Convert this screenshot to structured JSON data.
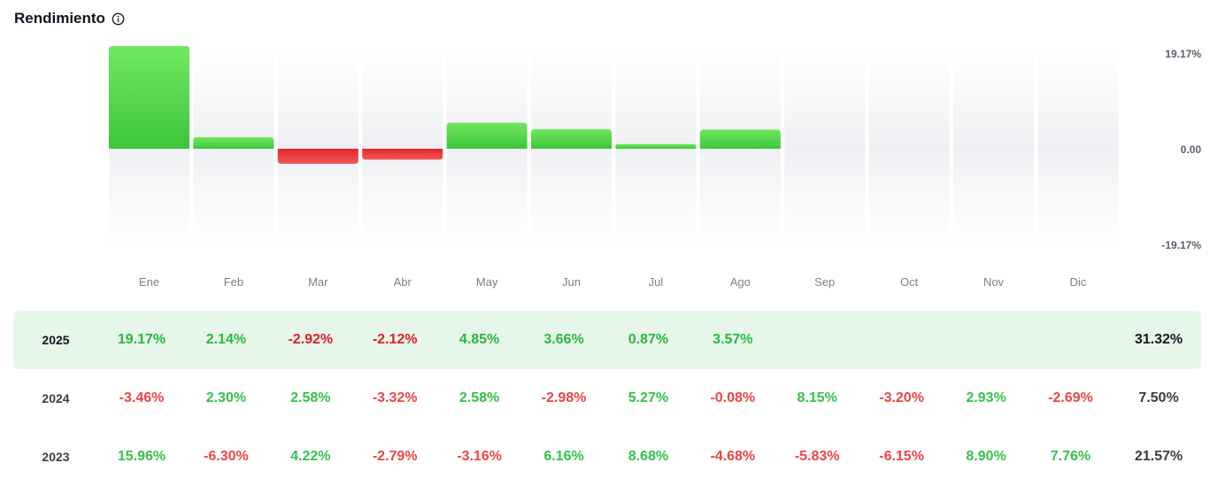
{
  "header": {
    "title": "Rendimiento",
    "info_icon": "info-circle-icon"
  },
  "colors": {
    "positive": "#3cc63a",
    "negative": "#e2272b",
    "current_row_bg": "#e6f7e9"
  },
  "chart_data": {
    "type": "bar",
    "categories": [
      "Ene",
      "Feb",
      "Mar",
      "Abr",
      "May",
      "Jun",
      "Jul",
      "Ago",
      "Sep",
      "Oct",
      "Nov",
      "Dic"
    ],
    "values": [
      19.17,
      2.14,
      -2.92,
      -2.12,
      4.85,
      3.66,
      0.87,
      3.57,
      null,
      null,
      null,
      null
    ],
    "ylim": [
      -19.17,
      19.17
    ],
    "y_ticks": [
      "19.17%",
      "0.00",
      "-19.17%"
    ],
    "y_axis_position": "right",
    "grid": false
  },
  "table": {
    "rows": [
      {
        "year": "2025",
        "current": true,
        "months": [
          "19.17%",
          "2.14%",
          "-2.92%",
          "-2.12%",
          "4.85%",
          "3.66%",
          "0.87%",
          "3.57%",
          "",
          "",
          "",
          ""
        ],
        "total": "31.32%"
      },
      {
        "year": "2024",
        "current": false,
        "months": [
          "-3.46%",
          "2.30%",
          "2.58%",
          "-3.32%",
          "2.58%",
          "-2.98%",
          "5.27%",
          "-0.08%",
          "8.15%",
          "-3.20%",
          "2.93%",
          "-2.69%"
        ],
        "total": "7.50%"
      },
      {
        "year": "2023",
        "current": false,
        "months": [
          "15.96%",
          "-6.30%",
          "4.22%",
          "-2.79%",
          "-3.16%",
          "6.16%",
          "8.68%",
          "-4.68%",
          "-5.83%",
          "-6.15%",
          "8.90%",
          "7.76%"
        ],
        "total": "21.57%"
      }
    ]
  }
}
